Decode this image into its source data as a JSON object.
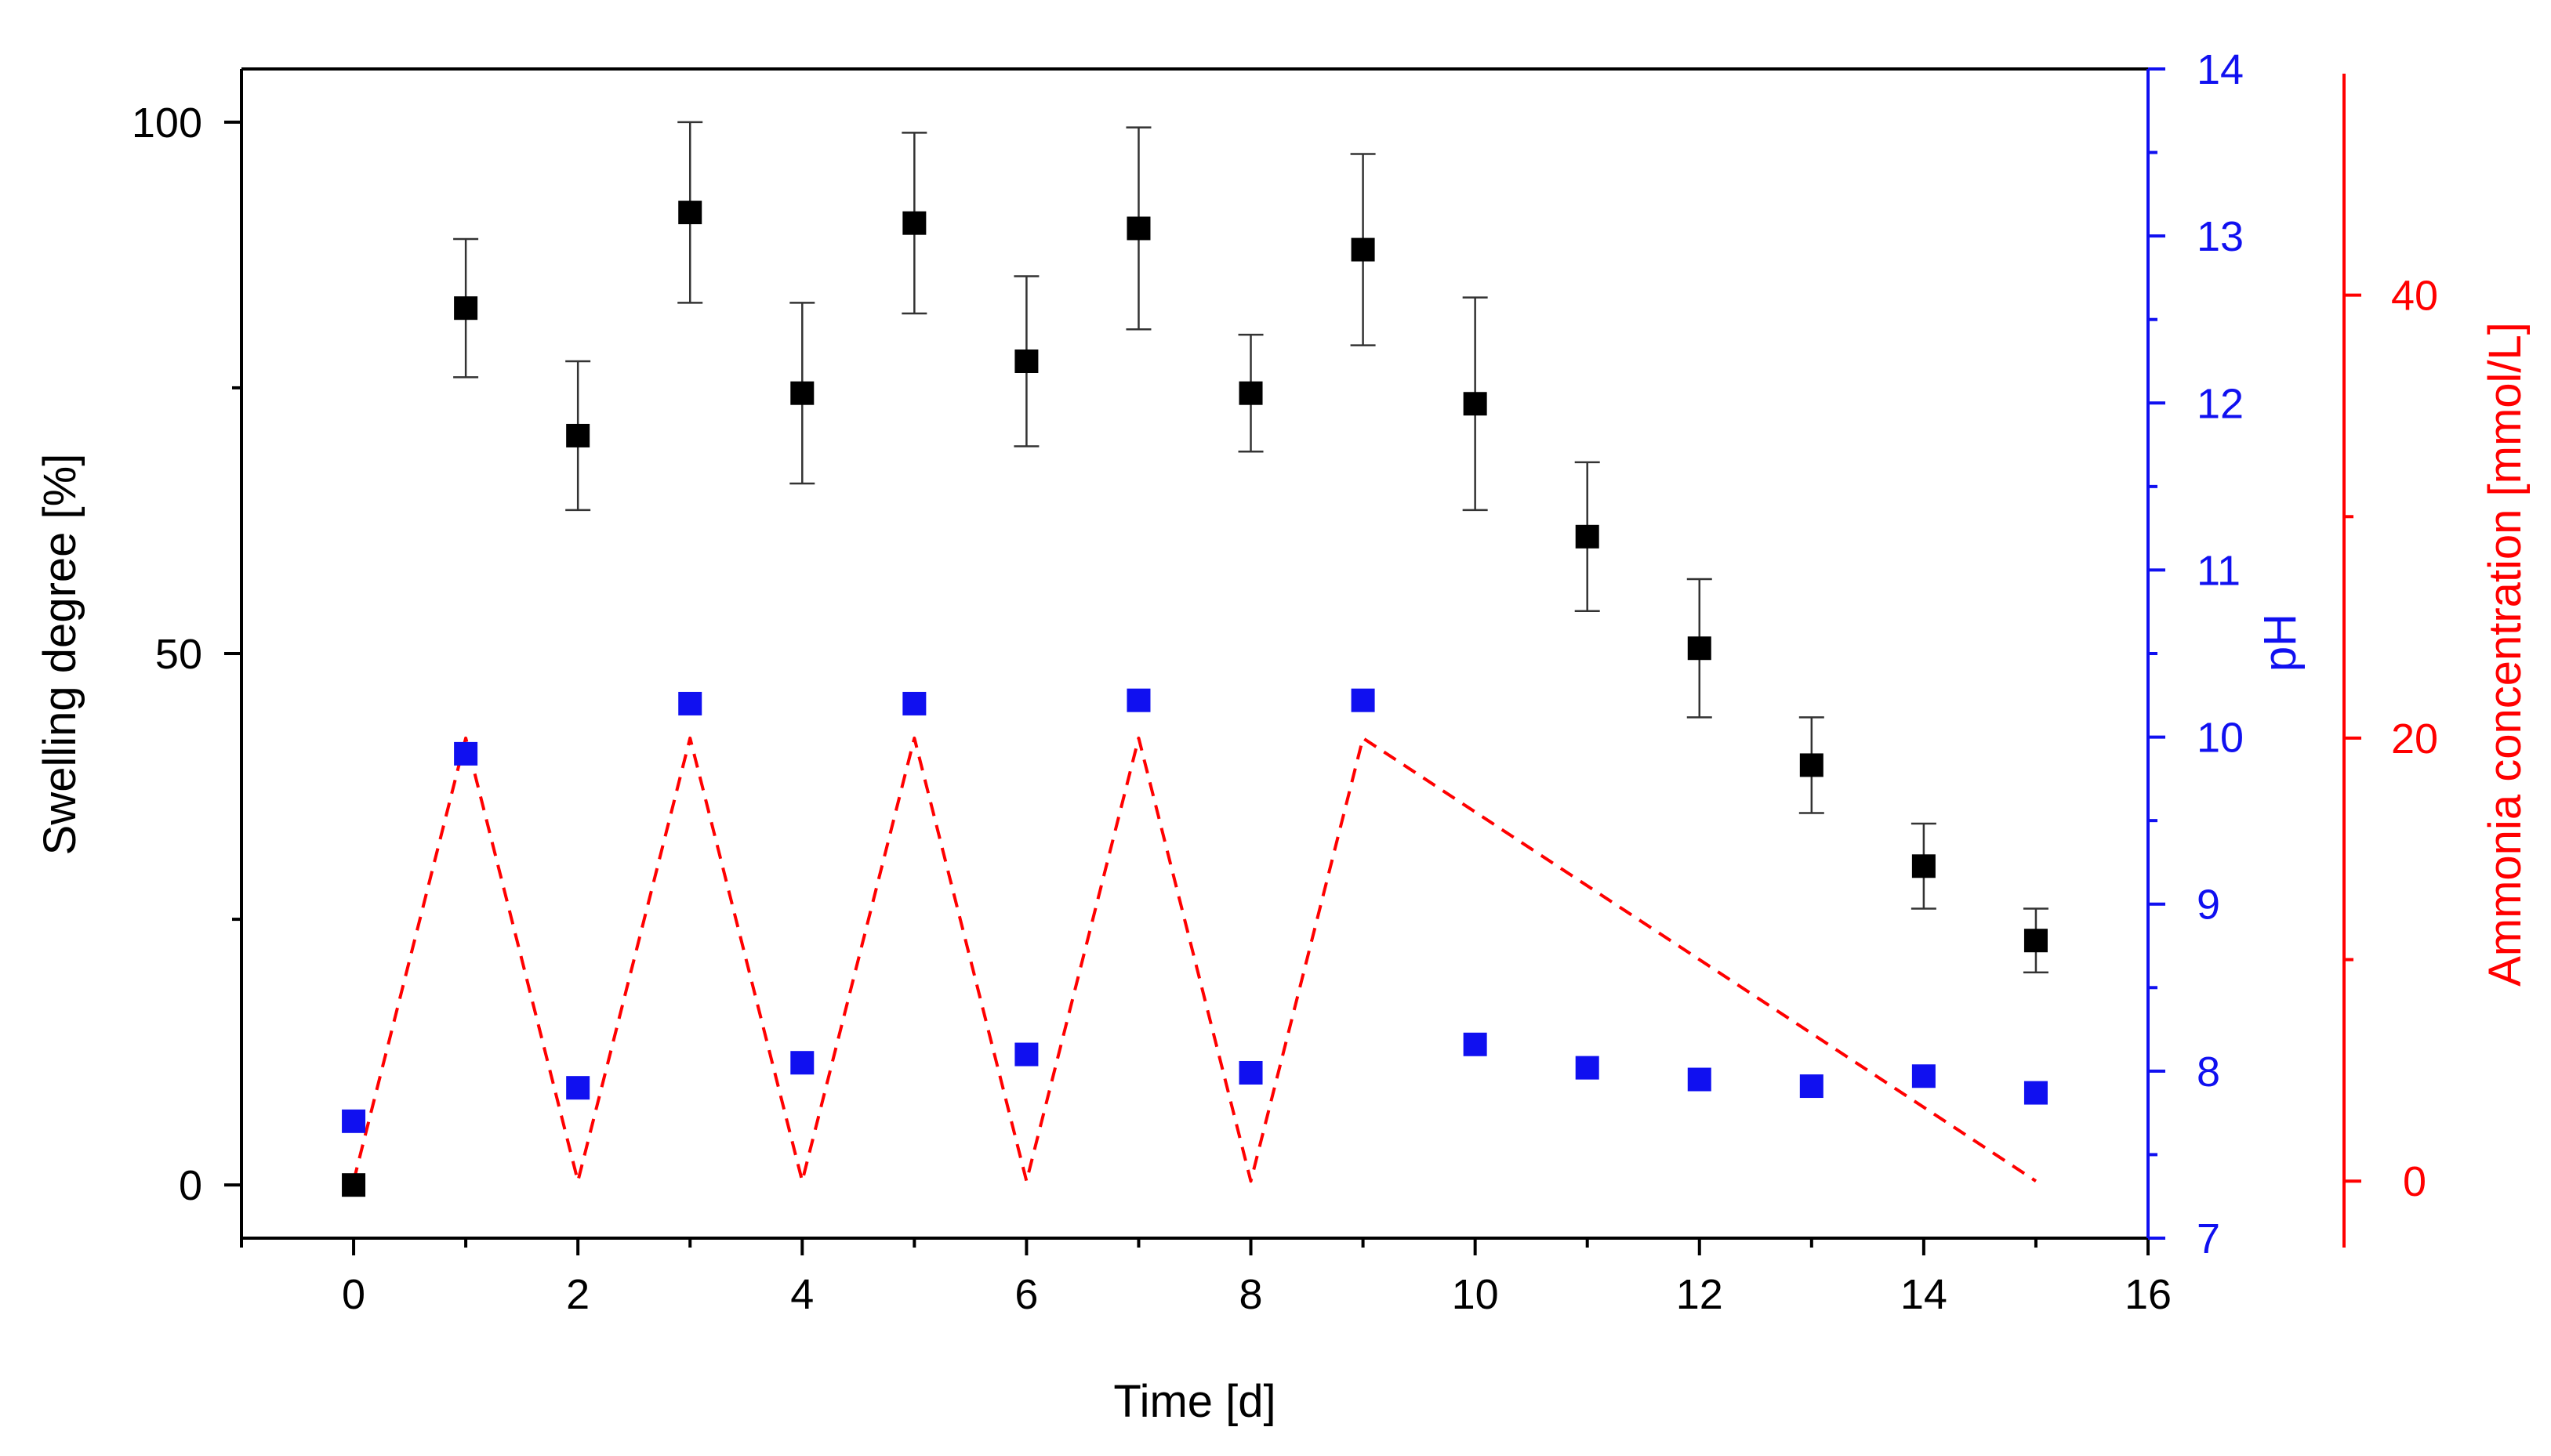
{
  "chart_data": {
    "type": "scatter",
    "x_axis": {
      "label": "Time [d]",
      "range": [
        -1,
        16
      ],
      "ticks": [
        0,
        2,
        4,
        6,
        8,
        10,
        12,
        14,
        16
      ],
      "tick_labels": [
        "0",
        "2",
        "4",
        "6",
        "8",
        "10",
        "12",
        "14",
        "16"
      ]
    },
    "y_left": {
      "label": "Swelling degree [%]",
      "range": [
        -5,
        105
      ],
      "ticks": [
        0,
        50,
        100
      ],
      "tick_labels": [
        "0",
        "50",
        "100"
      ]
    },
    "y_ph": {
      "label": "pH",
      "range": [
        7,
        14
      ],
      "ticks": [
        7,
        8,
        9,
        10,
        11,
        12,
        13,
        14
      ],
      "tick_labels": [
        "7",
        "8",
        "9",
        "10",
        "11",
        "12",
        "13",
        "14"
      ]
    },
    "y_ammonia": {
      "label": "Ammonia concentration [mmol/L]",
      "range": [
        -3,
        50
      ],
      "ticks": [
        0,
        20,
        40
      ],
      "tick_labels": [
        "0",
        "20",
        "40"
      ]
    },
    "colors": {
      "swelling": "#000000",
      "ph": "#1010f0",
      "ammonia": "#ff0000",
      "axis": "#000000"
    },
    "series": [
      {
        "name": "Swelling degree",
        "axis": "y_left",
        "marker": "square",
        "x": [
          0,
          1,
          2,
          3,
          4,
          5,
          6,
          7,
          8,
          9,
          10,
          11,
          12,
          13,
          14,
          15
        ],
        "y": [
          0,
          82.5,
          70.5,
          91.5,
          74.5,
          90.5,
          77.5,
          90,
          74.5,
          88,
          73.5,
          61,
          50.5,
          39.5,
          30,
          23
        ],
        "error": [
          0,
          6.5,
          7,
          8.5,
          8.5,
          8.5,
          8,
          9.5,
          5.5,
          9,
          10,
          7,
          6.5,
          4.5,
          4,
          3
        ]
      },
      {
        "name": "pH",
        "axis": "y_ph",
        "marker": "square",
        "x": [
          0,
          1,
          2,
          3,
          4,
          5,
          6,
          7,
          8,
          9,
          10,
          11,
          12,
          13,
          14,
          15
        ],
        "y": [
          7.7,
          9.9,
          7.9,
          10.2,
          8.05,
          10.2,
          8.1,
          10.22,
          7.99,
          10.22,
          8.16,
          8.02,
          7.95,
          7.91,
          7.97,
          7.87
        ]
      },
      {
        "name": "Ammonia concentration",
        "axis": "y_ammonia",
        "style": "dashed-step",
        "x": [
          0,
          1,
          1,
          2,
          2,
          3,
          3,
          4,
          4,
          5,
          5,
          6,
          6,
          7,
          7,
          8,
          8,
          9,
          9,
          15
        ],
        "y": [
          0,
          20,
          20,
          0,
          0,
          20,
          20,
          0,
          0,
          20,
          20,
          0,
          0,
          20,
          20,
          0,
          0,
          20,
          20,
          0
        ]
      }
    ]
  }
}
